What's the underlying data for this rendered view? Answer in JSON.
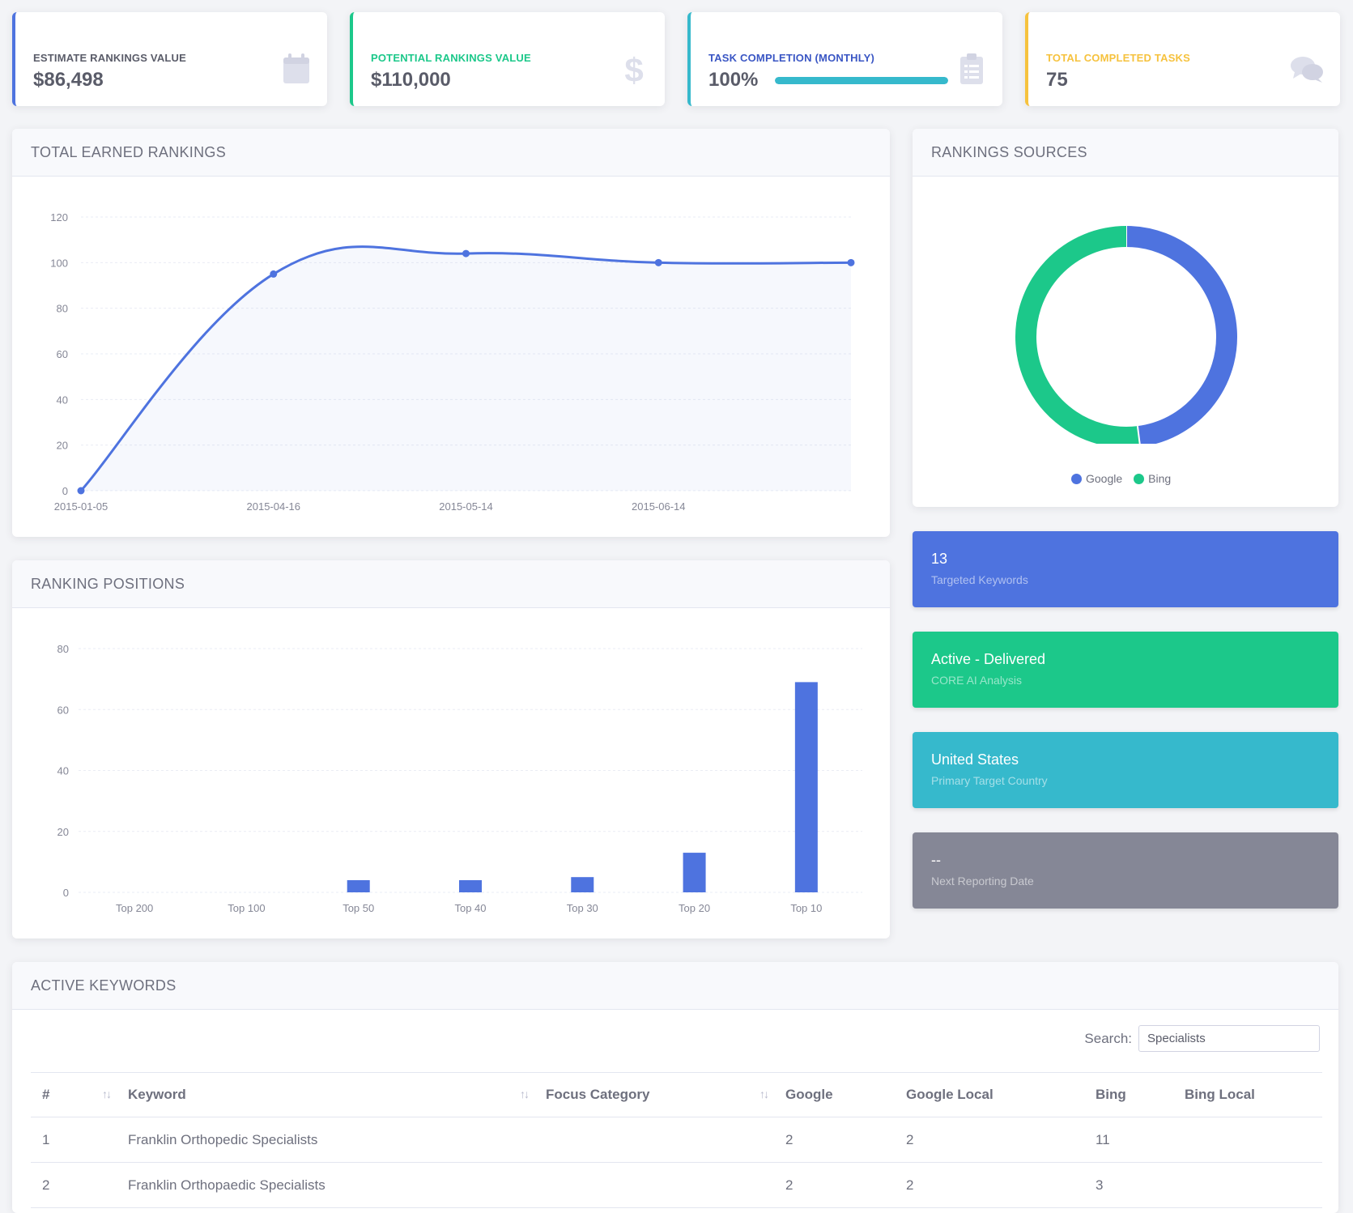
{
  "stats": [
    {
      "label": "Estimate Rankings Value",
      "value": "$86,498",
      "color": "#4e73df",
      "icon": "calendar-icon"
    },
    {
      "label": "Potential Rankings Value",
      "value": "$110,000",
      "color": "#1cc88a",
      "icon": "dollar-icon"
    },
    {
      "label": "Task Completion (Monthly)",
      "value": "100%",
      "color": "#36b9cc",
      "icon": "clipboard-list-icon",
      "progress": 1.0
    },
    {
      "label": "Total Completed Tasks",
      "value": "75",
      "color": "#f6c23e",
      "icon": "comments-icon"
    }
  ],
  "earned": {
    "title": "TOTAL EARNED RANKINGS",
    "chart_data": {
      "type": "line",
      "x": [
        "2015-01-05",
        "2015-04-16",
        "2015-05-14",
        "2015-06-14",
        ""
      ],
      "x_tick_labels": [
        "2015-01-05",
        "2015-04-16",
        "2015-05-14",
        "2015-06-14"
      ],
      "values": [
        0,
        95,
        104,
        100,
        100
      ],
      "ylim": [
        0,
        120
      ],
      "yticks": [
        "0",
        "20",
        "40",
        "60",
        "80",
        "100",
        "120"
      ],
      "color": "#4e73df",
      "grid": true
    }
  },
  "positions": {
    "title": "RANKING POSITIONS",
    "chart_data": {
      "type": "bar",
      "categories": [
        "Top 200",
        "Top 100",
        "Top 50",
        "Top 40",
        "Top 30",
        "Top 20",
        "Top 10"
      ],
      "values": [
        0,
        0,
        4,
        4,
        5,
        13,
        69
      ],
      "ylim": [
        0,
        80
      ],
      "yticks": [
        "0",
        "20",
        "40",
        "60",
        "80"
      ],
      "color": "#4e73df",
      "grid": true
    }
  },
  "sources": {
    "title": "RANKINGS SOURCES",
    "chart_data": {
      "type": "pie",
      "donut": true,
      "labels": [
        "Google",
        "Bing"
      ],
      "values": [
        48,
        52
      ],
      "colors": [
        "#4e73df",
        "#1cc88a"
      ],
      "legend": "bottom"
    }
  },
  "tiles": [
    {
      "title": "13",
      "subtitle": "Targeted Keywords",
      "color": "#4e73df"
    },
    {
      "title": "Active - Delivered",
      "subtitle": "CORE AI Analysis",
      "color": "#1cc88a"
    },
    {
      "title": "United States",
      "subtitle": "Primary Target Country",
      "color": "#36b9cc"
    },
    {
      "title": "--",
      "subtitle": "Next Reporting Date",
      "color": "#858796"
    }
  ],
  "keywords": {
    "title": "ACTIVE KEYWORDS",
    "search_label": "Search:",
    "search_value": "Specialists",
    "columns": [
      "#",
      "Keyword",
      "Focus Category",
      "Google",
      "Google Local",
      "Bing",
      "Bing Local"
    ],
    "rows": [
      [
        "1",
        "Franklin Orthopedic Specialists",
        "",
        "2",
        "2",
        "11",
        ""
      ],
      [
        "2",
        "Franklin Orthopaedic Specialists",
        "",
        "2",
        "2",
        "3",
        ""
      ]
    ]
  }
}
